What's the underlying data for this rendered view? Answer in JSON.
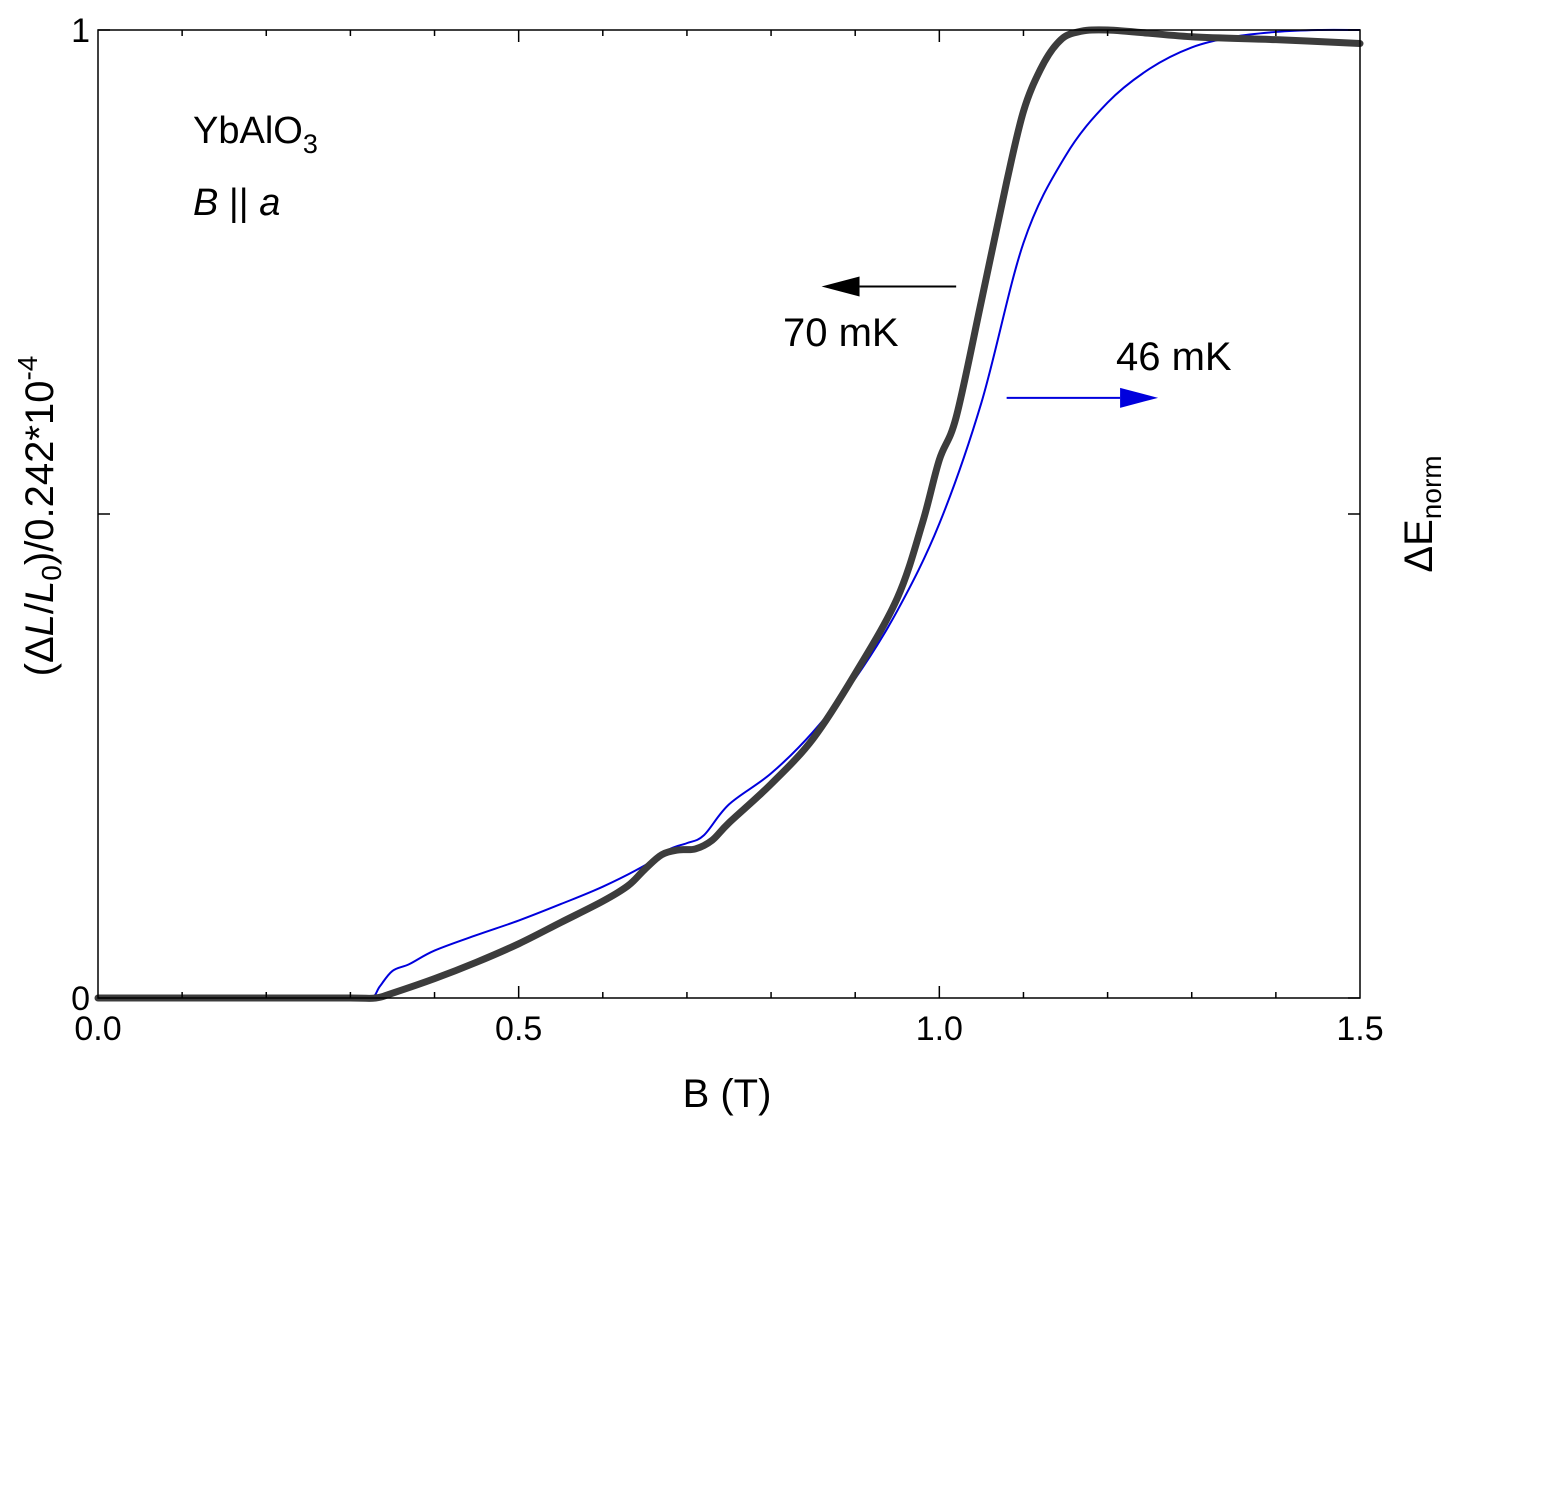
{
  "chart_data": {
    "type": "line",
    "xlabel": "B (T)",
    "ylabel": {
      "open": "(Δ",
      "l1": "L",
      "slash": "/",
      "l2": "L",
      "sub": "0",
      "rest": ")/0.242*10",
      "sup": "-4"
    },
    "y2label": {
      "main": "ΔE",
      "sub": "norm"
    },
    "xlim": [
      0,
      1.5
    ],
    "ylim": [
      0,
      1
    ],
    "xticks": [
      0.0,
      0.5,
      1.0,
      1.5
    ],
    "xtick_labels": [
      "0.0",
      "0.5",
      "1.0",
      "1.5"
    ],
    "yticks": [
      0,
      1
    ],
    "ytick_labels": [
      "0",
      "1"
    ],
    "grid": false,
    "annotations": {
      "compound": {
        "main": "YbAlO",
        "sub": "3"
      },
      "orientation": {
        "b": "B",
        "mid": " || ",
        "a": "a"
      },
      "label_70": "70 mK",
      "label_46": "46 mK",
      "arrow_left": {
        "x_from": 1.02,
        "x_to": 0.86,
        "y": 0.735,
        "axis": "left"
      },
      "arrow_right": {
        "x_from": 1.08,
        "x_to": 1.26,
        "y": 0.62,
        "axis": "right"
      }
    },
    "colors": {
      "s70": "#3c3c3c",
      "s46": "#0000dd",
      "axis": "#000000"
    },
    "series": [
      {
        "name": "70 mK",
        "axis": "left",
        "x": [
          0.0,
          0.1,
          0.2,
          0.3,
          0.33,
          0.35,
          0.4,
          0.45,
          0.5,
          0.55,
          0.6,
          0.63,
          0.65,
          0.67,
          0.69,
          0.71,
          0.73,
          0.75,
          0.8,
          0.85,
          0.9,
          0.95,
          0.98,
          1.0,
          1.02,
          1.05,
          1.08,
          1.1,
          1.12,
          1.14,
          1.16,
          1.2,
          1.3,
          1.4,
          1.5
        ],
        "y": [
          0.0,
          0.0,
          0.0,
          0.0,
          0.0,
          0.005,
          0.02,
          0.037,
          0.056,
          0.078,
          0.1,
          0.116,
          0.133,
          0.148,
          0.153,
          0.154,
          0.163,
          0.181,
          0.221,
          0.268,
          0.335,
          0.413,
          0.491,
          0.556,
          0.6,
          0.72,
          0.843,
          0.916,
          0.959,
          0.986,
          0.997,
          1.0,
          0.993,
          0.99,
          0.986
        ]
      },
      {
        "name": "46 mK",
        "axis": "right",
        "x": [
          0.0,
          0.1,
          0.2,
          0.3,
          0.325,
          0.335,
          0.35,
          0.37,
          0.4,
          0.45,
          0.5,
          0.55,
          0.6,
          0.65,
          0.68,
          0.7,
          0.72,
          0.75,
          0.8,
          0.85,
          0.9,
          0.95,
          1.0,
          1.05,
          1.1,
          1.15,
          1.2,
          1.25,
          1.3,
          1.35,
          1.4,
          1.45,
          1.5
        ],
        "y": [
          0.0,
          0.0,
          0.0,
          0.0,
          0.0,
          0.012,
          0.028,
          0.035,
          0.049,
          0.065,
          0.08,
          0.097,
          0.115,
          0.137,
          0.154,
          0.16,
          0.168,
          0.2,
          0.232,
          0.275,
          0.33,
          0.4,
          0.49,
          0.615,
          0.78,
          0.87,
          0.925,
          0.96,
          0.982,
          0.993,
          0.998,
          1.0,
          1.0
        ]
      }
    ]
  }
}
